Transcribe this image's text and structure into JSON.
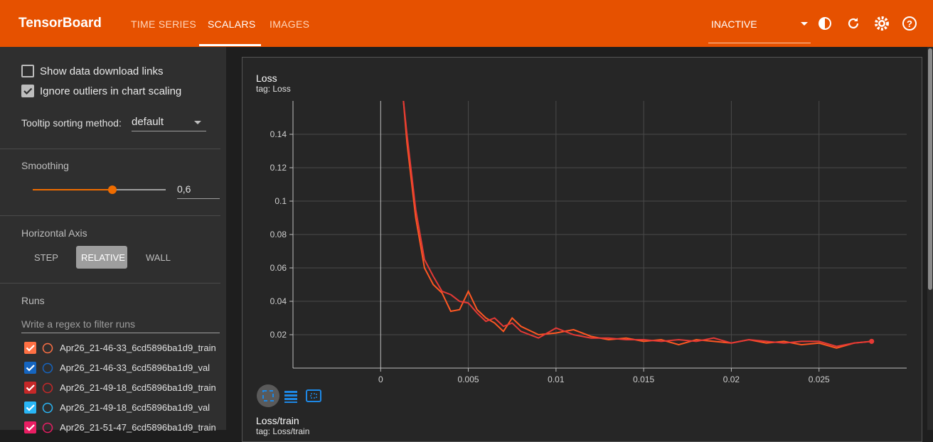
{
  "header": {
    "title": "TensorBoard",
    "tabs": [
      "TIME SERIES",
      "SCALARS",
      "IMAGES"
    ],
    "status": "INACTIVE"
  },
  "sidebar": {
    "options": [
      "Show data download links",
      "Ignore outliers in chart scaling"
    ],
    "tooltip_label": "Tooltip sorting method:",
    "tooltip_value": "default",
    "smoothing_label": "Smoothing",
    "smoothing_value": "0,6",
    "axis_label": "Horizontal Axis",
    "axis_options": [
      "STEP",
      "RELATIVE",
      "WALL"
    ],
    "runs_label": "Runs",
    "runs_filter": "Write a regex to filter runs",
    "runs": [
      {
        "name": "Apr26_21-46-33_6cd5896ba1d9_train",
        "color": "#ff7043"
      },
      {
        "name": "Apr26_21-46-33_6cd5896ba1d9_val",
        "color": "#1565c0"
      },
      {
        "name": "Apr26_21-49-18_6cd5896ba1d9_train",
        "color": "#c62828"
      },
      {
        "name": "Apr26_21-49-18_6cd5896ba1d9_val",
        "color": "#29b6f6"
      },
      {
        "name": "Apr26_21-51-47_6cd5896ba1d9_train",
        "color": "#e91e63"
      }
    ]
  },
  "cards": [
    {
      "title": "Loss",
      "tag": "tag: Loss"
    },
    {
      "title": "Loss/train",
      "tag": "tag: Loss/train"
    }
  ],
  "chart_data": {
    "type": "line",
    "x": [
      0.0013,
      0.0015,
      0.002,
      0.0025,
      0.003,
      0.0035,
      0.004,
      0.0045,
      0.005,
      0.0055,
      0.006,
      0.0065,
      0.007,
      0.0075,
      0.008,
      0.009,
      0.01,
      0.011,
      0.012,
      0.013,
      0.014,
      0.015,
      0.016,
      0.017,
      0.018,
      0.019,
      0.02,
      0.021,
      0.022,
      0.023,
      0.024,
      0.025,
      0.026,
      0.027,
      0.028
    ],
    "series": [
      {
        "color": "#ff5722",
        "values": [
          0.16,
          0.135,
          0.09,
          0.06,
          0.05,
          0.045,
          0.034,
          0.035,
          0.046,
          0.035,
          0.03,
          0.027,
          0.022,
          0.03,
          0.025,
          0.02,
          0.021,
          0.023,
          0.019,
          0.017,
          0.018,
          0.016,
          0.017,
          0.014,
          0.017,
          0.016,
          0.015,
          0.017,
          0.015,
          0.016,
          0.014,
          0.015,
          0.012,
          0.015,
          0.016
        ]
      },
      {
        "color": "#e53935",
        "values": [
          0.16,
          0.14,
          0.095,
          0.065,
          0.055,
          0.046,
          0.044,
          0.04,
          0.039,
          0.033,
          0.028,
          0.03,
          0.025,
          0.027,
          0.022,
          0.018,
          0.024,
          0.02,
          0.018,
          0.018,
          0.017,
          0.017,
          0.016,
          0.017,
          0.016,
          0.018,
          0.015,
          0.017,
          0.016,
          0.015,
          0.016,
          0.016,
          0.013,
          0.015,
          0.016
        ]
      }
    ],
    "xlim": [
      -0.005,
      0.03
    ],
    "ylim": [
      0,
      0.16
    ],
    "xticks": [
      0,
      0.005,
      0.01,
      0.015,
      0.02,
      0.025
    ],
    "yticks": [
      0.02,
      0.04,
      0.06,
      0.08,
      0.1,
      0.12,
      0.14
    ],
    "grid": true
  }
}
